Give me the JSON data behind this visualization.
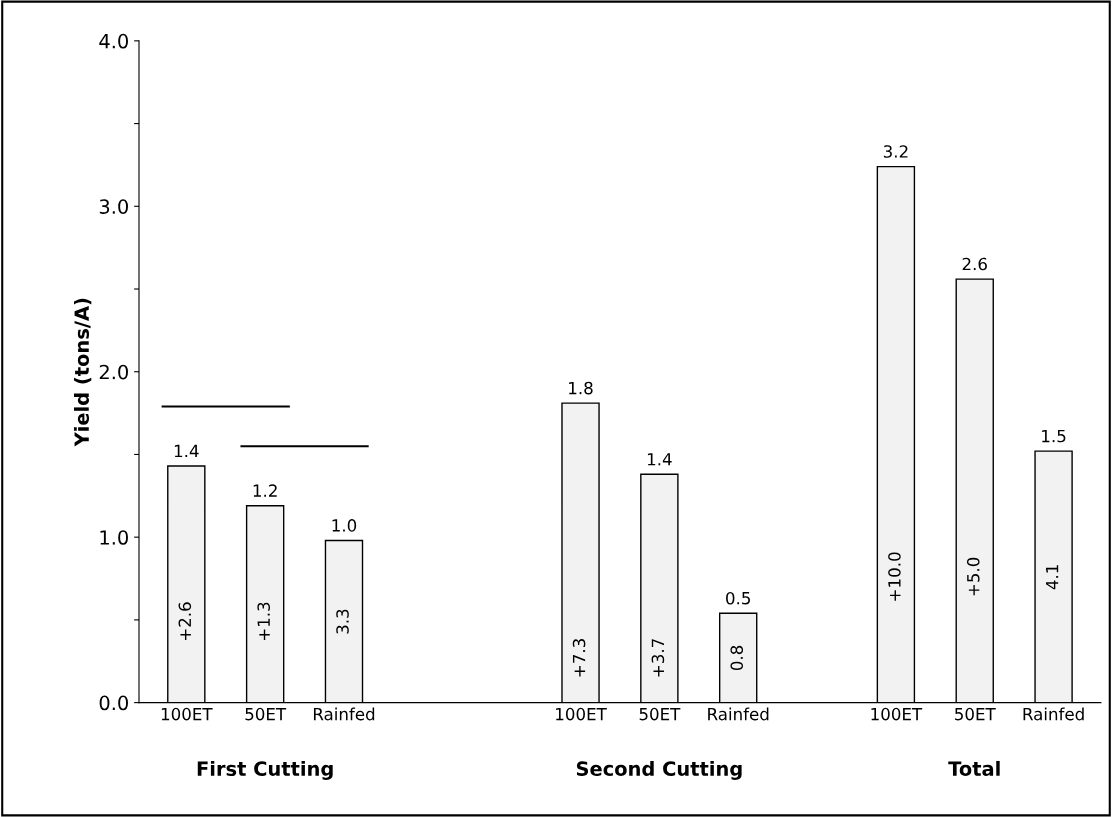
{
  "chart_data": {
    "type": "bar",
    "ylabel": "Yield (tons/A)",
    "categories": [
      "100ET",
      "50ET",
      "Rainfed",
      null,
      null,
      "100ET",
      "50ET",
      "Rainfed",
      null,
      "100ET",
      "50ET",
      "Rainfed"
    ],
    "values": [
      1.43,
      1.19,
      0.98,
      null,
      null,
      1.81,
      1.38,
      0.54,
      null,
      3.24,
      2.56,
      1.52
    ],
    "value_labels": [
      "1.4",
      "1.2",
      "1.0",
      null,
      null,
      "1.8",
      "1.4",
      "0.5",
      null,
      "3.2",
      "2.6",
      "1.5"
    ],
    "color": "#f2f2f2",
    "ylim": [
      0,
      4
    ],
    "yticks": [
      {
        "value": 0,
        "label": "0.0"
      },
      {
        "value": 0.5,
        "label": null
      },
      {
        "value": 1,
        "label": "1.0"
      },
      {
        "value": 1.5,
        "label": null
      },
      {
        "value": 2,
        "label": "2.0"
      },
      {
        "value": 2.5,
        "label": null
      },
      {
        "value": 3,
        "label": "3.0"
      },
      {
        "value": 3.5,
        "label": null
      },
      {
        "value": 4,
        "label": "4.0"
      }
    ],
    "annotations": [
      "+2.6",
      "+1.3",
      "3.3",
      "+7.3",
      "+3.7",
      "0.8",
      "+10.0",
      "+5.0",
      "4.1",
      "First Cutting",
      "Second Cutting",
      "Total"
    ],
    "grid": false,
    "legend": false
  }
}
